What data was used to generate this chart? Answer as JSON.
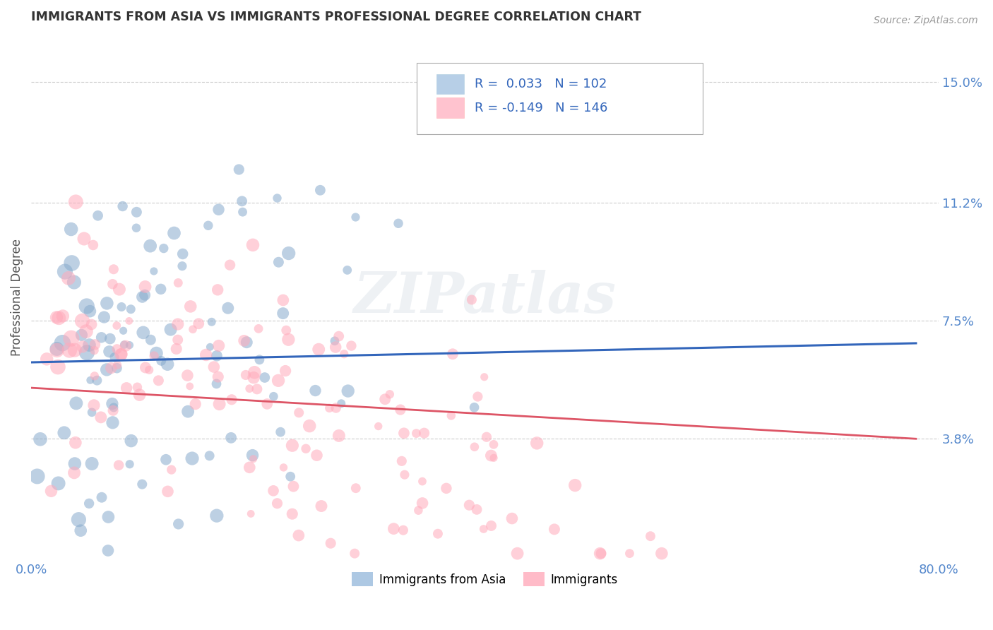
{
  "title": "IMMIGRANTS FROM ASIA VS IMMIGRANTS PROFESSIONAL DEGREE CORRELATION CHART",
  "source": "Source: ZipAtlas.com",
  "xlabel_label": "Immigrants from Asia",
  "ylabel_label": "Professional Degree",
  "xmin": 0.0,
  "xmax": 0.8,
  "ymin": 0.0,
  "ymax": 0.165,
  "yticks": [
    0.038,
    0.075,
    0.112,
    0.15
  ],
  "ytick_labels": [
    "3.8%",
    "7.5%",
    "11.2%",
    "15.0%"
  ],
  "xticks": [
    0.0,
    0.8
  ],
  "xtick_labels": [
    "0.0%",
    "80.0%"
  ],
  "legend1_color": "#99bbdd",
  "legend2_color": "#ffaabb",
  "blue_color": "#88aacc",
  "pink_color": "#ffaabb",
  "regression_blue_color": "#3366bb",
  "regression_pink_color": "#dd5566",
  "watermark": "ZIPatlas",
  "background_color": "#ffffff",
  "grid_color": "#cccccc",
  "title_color": "#333333",
  "axis_label_color": "#555555",
  "tick_label_color": "#5588cc",
  "R1": 0.033,
  "N1": 102,
  "R2": -0.149,
  "N2": 146,
  "blue_trend_x0": 0.0,
  "blue_trend_y0": 0.062,
  "blue_trend_x1": 0.78,
  "blue_trend_y1": 0.068,
  "pink_trend_x0": 0.0,
  "pink_trend_y0": 0.054,
  "pink_trend_x1": 0.78,
  "pink_trend_y1": 0.038
}
